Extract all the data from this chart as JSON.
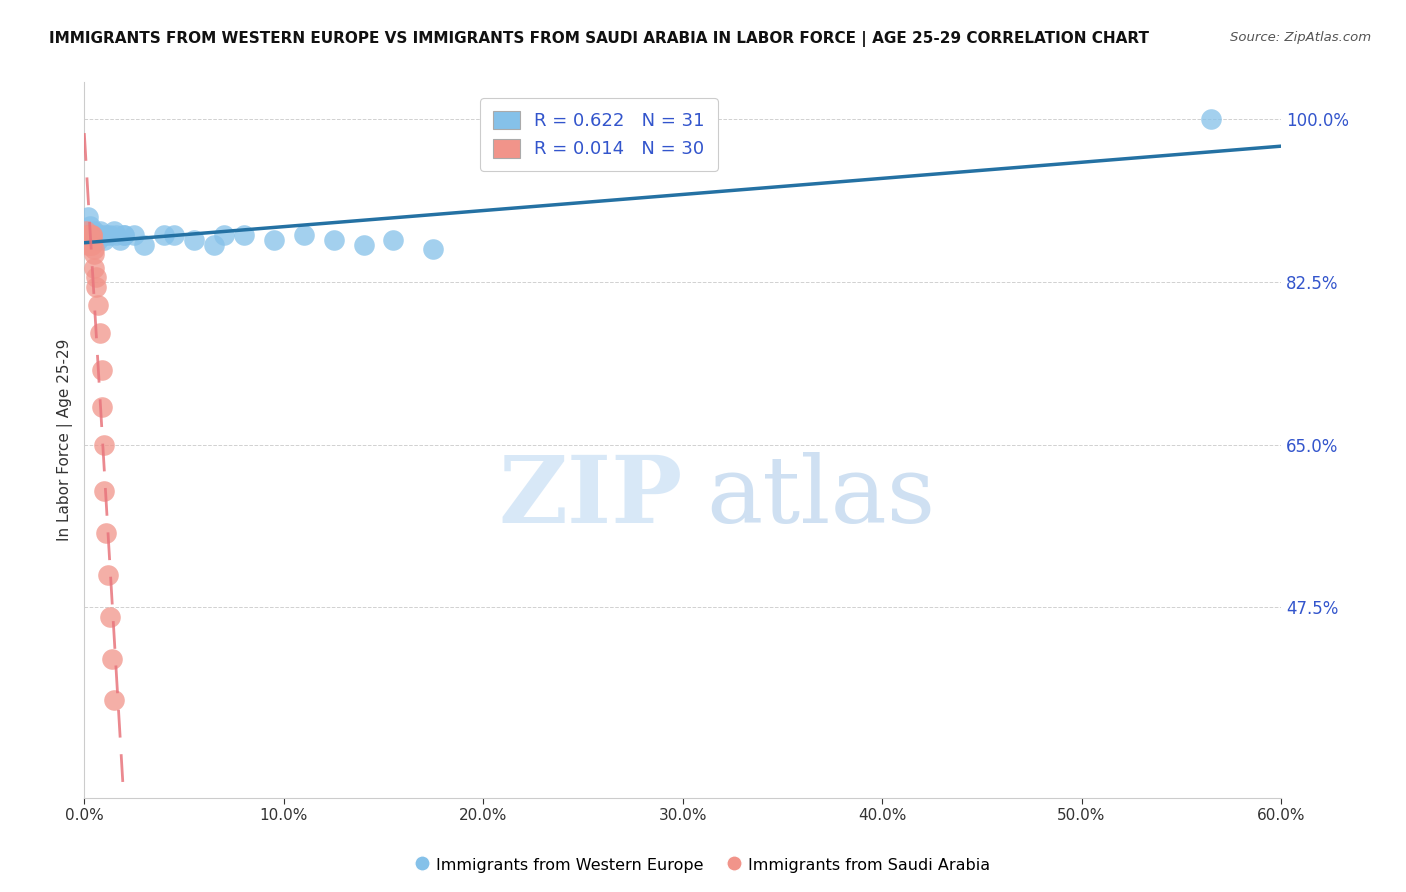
{
  "title": "IMMIGRANTS FROM WESTERN EUROPE VS IMMIGRANTS FROM SAUDI ARABIA IN LABOR FORCE | AGE 25-29 CORRELATION CHART",
  "source": "Source: ZipAtlas.com",
  "ylabel": "In Labor Force | Age 25-29",
  "xmin": 0.0,
  "xmax": 0.6,
  "ymin": 0.27,
  "ymax": 1.04,
  "blue_R": 0.622,
  "blue_N": 31,
  "pink_R": 0.014,
  "pink_N": 30,
  "blue_color": "#85c1e9",
  "pink_color": "#f1948a",
  "blue_line_color": "#2471a3",
  "pink_line_color": "#e8747c",
  "legend_blue_label": "R = 0.622   N = 31",
  "legend_pink_label": "R = 0.014   N = 30",
  "watermark_zip": "ZIP",
  "watermark_atlas": "atlas",
  "blue_x": [
    0.002,
    0.003,
    0.004,
    0.005,
    0.006,
    0.007,
    0.008,
    0.009,
    0.01,
    0.011,
    0.013,
    0.015,
    0.016,
    0.018,
    0.02,
    0.02,
    0.025,
    0.03,
    0.04,
    0.045,
    0.055,
    0.065,
    0.07,
    0.08,
    0.095,
    0.11,
    0.125,
    0.14,
    0.155,
    0.175,
    0.565
  ],
  "blue_y": [
    0.895,
    0.885,
    0.875,
    0.88,
    0.875,
    0.87,
    0.88,
    0.875,
    0.87,
    0.875,
    0.875,
    0.88,
    0.875,
    0.87,
    0.875,
    0.875,
    0.875,
    0.865,
    0.875,
    0.875,
    0.87,
    0.865,
    0.875,
    0.875,
    0.87,
    0.875,
    0.87,
    0.865,
    0.87,
    0.86,
    1.0
  ],
  "pink_x": [
    0.001,
    0.001,
    0.001,
    0.002,
    0.002,
    0.003,
    0.003,
    0.004,
    0.004,
    0.004,
    0.005,
    0.005,
    0.005,
    0.006,
    0.006,
    0.007,
    0.008,
    0.009,
    0.009,
    0.01,
    0.01,
    0.011,
    0.012,
    0.013,
    0.014,
    0.015,
    0.002,
    0.003,
    0.003,
    0.004
  ],
  "pink_y": [
    0.875,
    0.88,
    0.87,
    0.875,
    0.865,
    0.875,
    0.87,
    0.87,
    0.865,
    0.875,
    0.86,
    0.855,
    0.84,
    0.83,
    0.82,
    0.8,
    0.77,
    0.73,
    0.69,
    0.65,
    0.6,
    0.555,
    0.51,
    0.465,
    0.42,
    0.375,
    0.87,
    0.865,
    0.87,
    0.875
  ],
  "yticks": [
    0.475,
    0.65,
    0.825,
    1.0
  ],
  "ytick_labels": [
    "47.5%",
    "65.0%",
    "82.5%",
    "100.0%"
  ]
}
